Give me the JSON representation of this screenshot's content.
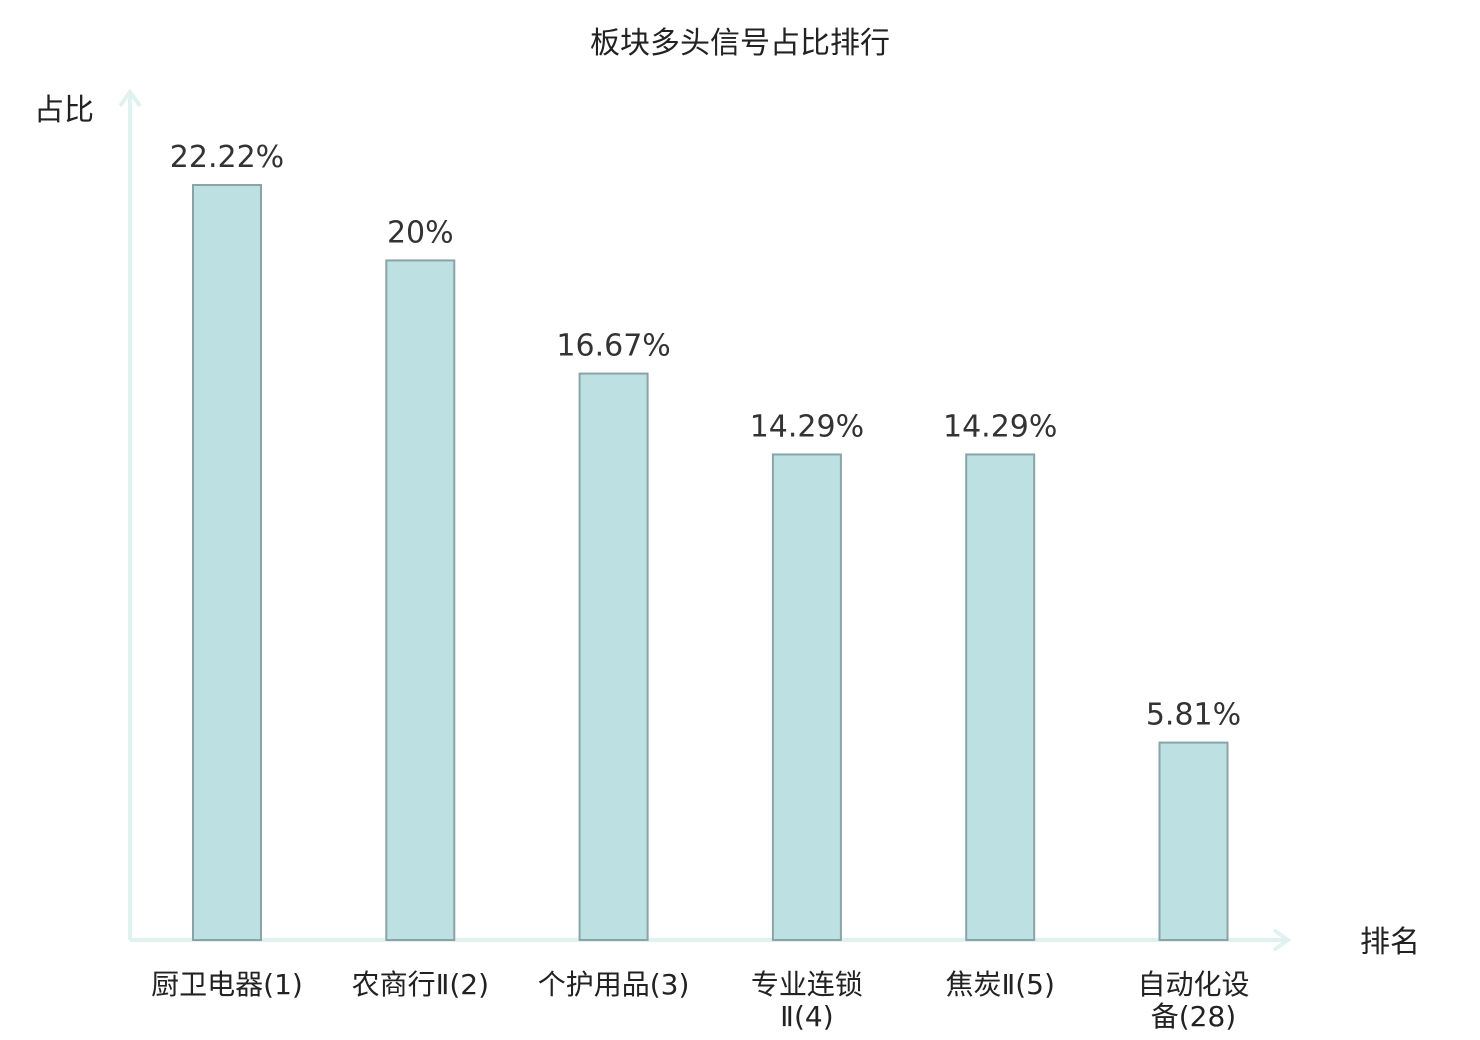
{
  "chart_data": {
    "type": "bar",
    "title": "板块多头信号占比排行",
    "ylabel": "占比",
    "xlabel": "排名",
    "categories": [
      {
        "lines": [
          "厨卫电器(1)"
        ],
        "highlight": false
      },
      {
        "lines": [
          "农商行Ⅱ(2)"
        ],
        "highlight": false
      },
      {
        "lines": [
          "个护用品(3)"
        ],
        "highlight": false
      },
      {
        "lines": [
          "专业连锁",
          "Ⅱ(4)"
        ],
        "highlight": false
      },
      {
        "lines": [
          "焦炭Ⅱ(5)"
        ],
        "highlight": false
      },
      {
        "lines": [
          "自动化设",
          "备(28)"
        ],
        "highlight": true
      }
    ],
    "values": [
      22.22,
      20,
      16.67,
      14.29,
      14.29,
      5.81
    ],
    "value_labels": [
      "22.22%",
      "20%",
      "16.67%",
      "14.29%",
      "14.29%",
      "5.81%"
    ],
    "ylim": [
      0,
      24
    ],
    "grid": false,
    "colors": {
      "bar_fill": "#bde0e3",
      "bar_stroke": "#8aa3a6",
      "axis": "#e0f2f0",
      "highlight_text": "#e02020",
      "text": "#222222"
    }
  }
}
